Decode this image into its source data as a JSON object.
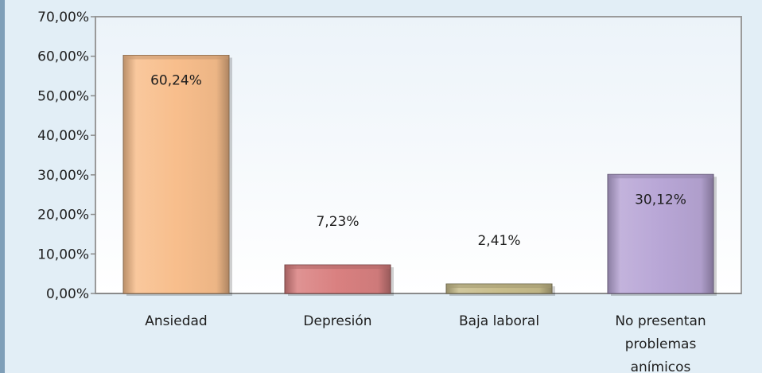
{
  "chart_data": {
    "type": "bar",
    "title": "",
    "xlabel": "",
    "ylabel": "",
    "ylim": [
      0,
      70
    ],
    "y_ticks": [
      "0,00%",
      "10,00%",
      "20,00%",
      "30,00%",
      "40,00%",
      "50,00%",
      "60,00%",
      "70,00%"
    ],
    "categories": [
      [
        "Ansiedad"
      ],
      [
        "Depresión"
      ],
      [
        "Baja laboral"
      ],
      [
        "No presentan",
        "problemas",
        "anímicos"
      ]
    ],
    "values": [
      60.24,
      7.23,
      2.41,
      30.12
    ],
    "data_labels": [
      "60,24%",
      "7,23%",
      "2,41%",
      "30,12%"
    ],
    "label_inside": [
      true,
      false,
      false,
      true
    ],
    "colors": [
      "#f8be8c",
      "#d98080",
      "#c8bd8c",
      "#b8a6d6"
    ],
    "grid": false,
    "legend": "none"
  }
}
